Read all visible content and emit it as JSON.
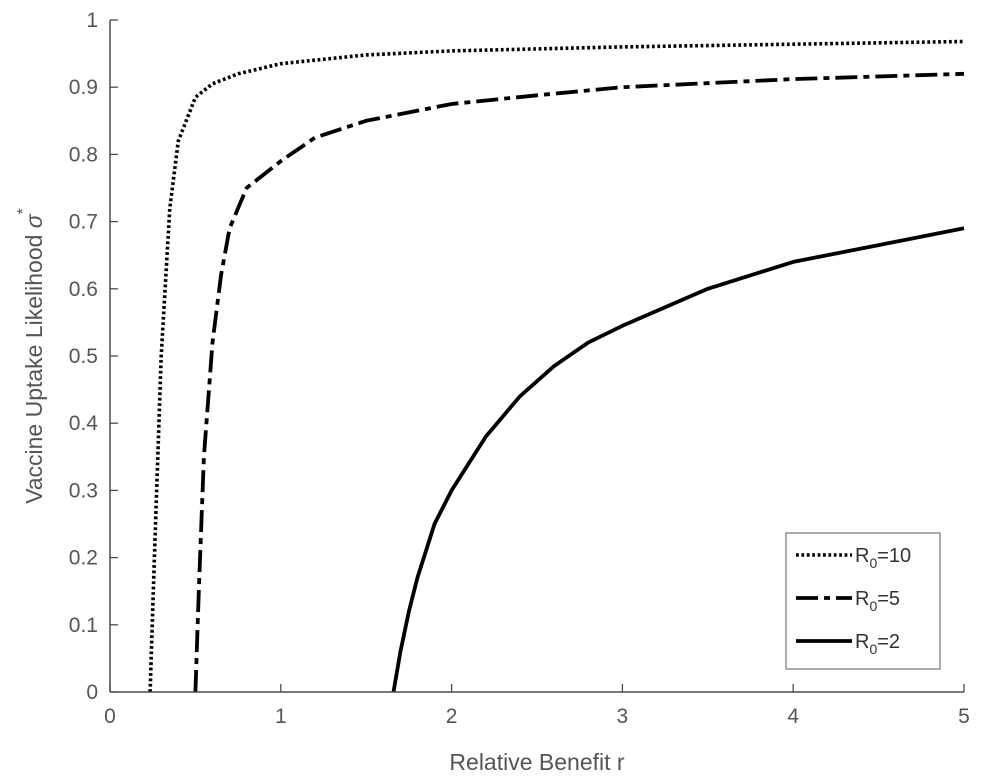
{
  "chart_data": {
    "type": "line",
    "xlabel": "Relative Benefit r",
    "ylabel": {
      "text": "Vaccine Uptake Likelihood ",
      "symbol": "σ",
      "superscript": "*"
    },
    "xlim": [
      0,
      5
    ],
    "ylim": [
      0,
      1
    ],
    "xticks": [
      "0",
      "1",
      "2",
      "3",
      "4",
      "5"
    ],
    "yticks": [
      "0",
      "0.1",
      "0.2",
      "0.3",
      "0.4",
      "0.5",
      "0.6",
      "0.7",
      "0.8",
      "0.9",
      "1"
    ],
    "grid": false,
    "legend_position": "bottom-right",
    "series": [
      {
        "legend": {
          "prefix": "R",
          "sub": "0",
          "suffix": "=10"
        },
        "line_style": "dotted",
        "color": "#000000",
        "points": [
          [
            0.235,
            0.0
          ],
          [
            0.26,
            0.2
          ],
          [
            0.3,
            0.5
          ],
          [
            0.35,
            0.72
          ],
          [
            0.4,
            0.82
          ],
          [
            0.5,
            0.885
          ],
          [
            0.6,
            0.905
          ],
          [
            0.75,
            0.92
          ],
          [
            1.0,
            0.935
          ],
          [
            1.5,
            0.948
          ],
          [
            2.0,
            0.954
          ],
          [
            3.0,
            0.96
          ],
          [
            4.0,
            0.964
          ],
          [
            5.0,
            0.968
          ]
        ]
      },
      {
        "legend": {
          "prefix": "R",
          "sub": "0",
          "suffix": "=5"
        },
        "line_style": "dashdot",
        "color": "#000000",
        "points": [
          [
            0.5,
            0.0
          ],
          [
            0.52,
            0.15
          ],
          [
            0.55,
            0.35
          ],
          [
            0.6,
            0.52
          ],
          [
            0.65,
            0.62
          ],
          [
            0.7,
            0.69
          ],
          [
            0.8,
            0.75
          ],
          [
            1.0,
            0.79
          ],
          [
            1.2,
            0.825
          ],
          [
            1.5,
            0.85
          ],
          [
            2.0,
            0.875
          ],
          [
            2.5,
            0.888
          ],
          [
            3.0,
            0.9
          ],
          [
            4.0,
            0.912
          ],
          [
            5.0,
            0.92
          ]
        ]
      },
      {
        "legend": {
          "prefix": "R",
          "sub": "0",
          "suffix": "=2"
        },
        "line_style": "solid",
        "color": "#000000",
        "points": [
          [
            1.66,
            0.0
          ],
          [
            1.7,
            0.06
          ],
          [
            1.75,
            0.12
          ],
          [
            1.8,
            0.17
          ],
          [
            1.9,
            0.25
          ],
          [
            2.0,
            0.3
          ],
          [
            2.2,
            0.38
          ],
          [
            2.4,
            0.44
          ],
          [
            2.6,
            0.485
          ],
          [
            2.8,
            0.52
          ],
          [
            3.0,
            0.545
          ],
          [
            3.5,
            0.6
          ],
          [
            4.0,
            0.64
          ],
          [
            4.5,
            0.665
          ],
          [
            5.0,
            0.69
          ]
        ]
      }
    ]
  }
}
